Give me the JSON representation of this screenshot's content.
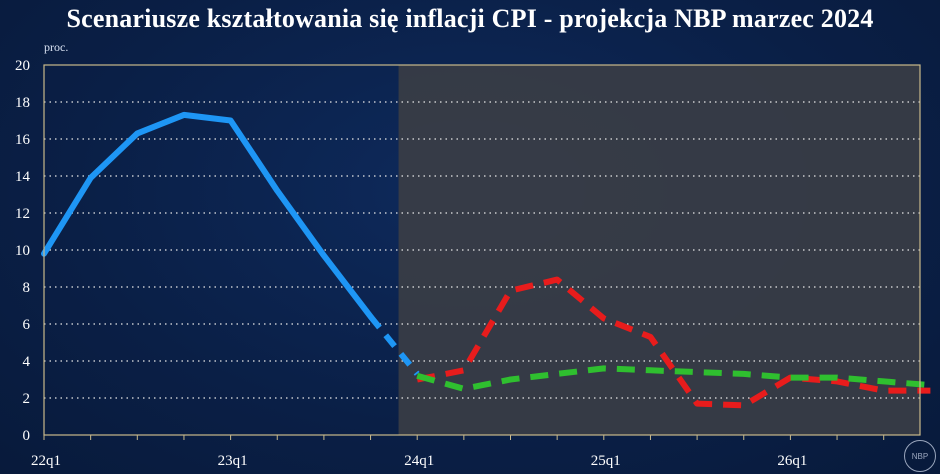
{
  "title": "Scenariusze kształtowania się inflacji CPI - projekcja NBP marzec 2024",
  "unit": "proc.",
  "logo_text": "NBP",
  "colors": {
    "background": "#0a1f46",
    "projection_area": "#3a3d45",
    "blue": "#1e96f5",
    "red": "#e81c1c",
    "green": "#2fbf2f"
  },
  "chart_data": {
    "type": "line",
    "x_ticks": [
      "22q1",
      "23q1",
      "24q1",
      "25q1",
      "26q1"
    ],
    "ylim": [
      0,
      20
    ],
    "y_ticks": [
      0,
      2,
      4,
      6,
      8,
      10,
      12,
      14,
      16,
      18,
      20
    ],
    "grid": true,
    "projection_shading_from": "23q4",
    "series": [
      {
        "key": "blue",
        "style": "solid",
        "x": [
          "22q1",
          "22q2",
          "22q3",
          "22q4",
          "23q1",
          "23q2",
          "23q3",
          "23q4"
        ],
        "values": [
          9.8,
          13.9,
          16.3,
          17.3,
          17.0,
          13.2,
          9.7,
          6.4
        ]
      },
      {
        "key": "blue",
        "style": "dashed",
        "x": [
          "23q4",
          "24q1"
        ],
        "values": [
          6.4,
          3.3
        ]
      },
      {
        "key": "red",
        "style": "dashed",
        "x": [
          "24q1",
          "24q2",
          "24q3",
          "24q4",
          "25q1",
          "25q2",
          "25q3",
          "25q4",
          "26q1",
          "26q2",
          "26q3",
          "26q4"
        ],
        "values": [
          3.0,
          3.5,
          7.8,
          8.4,
          6.3,
          5.3,
          1.7,
          1.6,
          3.1,
          2.9,
          2.4,
          2.4
        ]
      },
      {
        "key": "green",
        "style": "dashed",
        "x": [
          "24q1",
          "24q2",
          "24q3",
          "24q4",
          "25q1",
          "25q2",
          "25q3",
          "25q4",
          "26q1",
          "26q2",
          "26q3",
          "26q4"
        ],
        "values": [
          3.2,
          2.5,
          3.0,
          3.3,
          3.6,
          3.5,
          3.4,
          3.3,
          3.1,
          3.1,
          2.9,
          2.7
        ]
      }
    ]
  }
}
